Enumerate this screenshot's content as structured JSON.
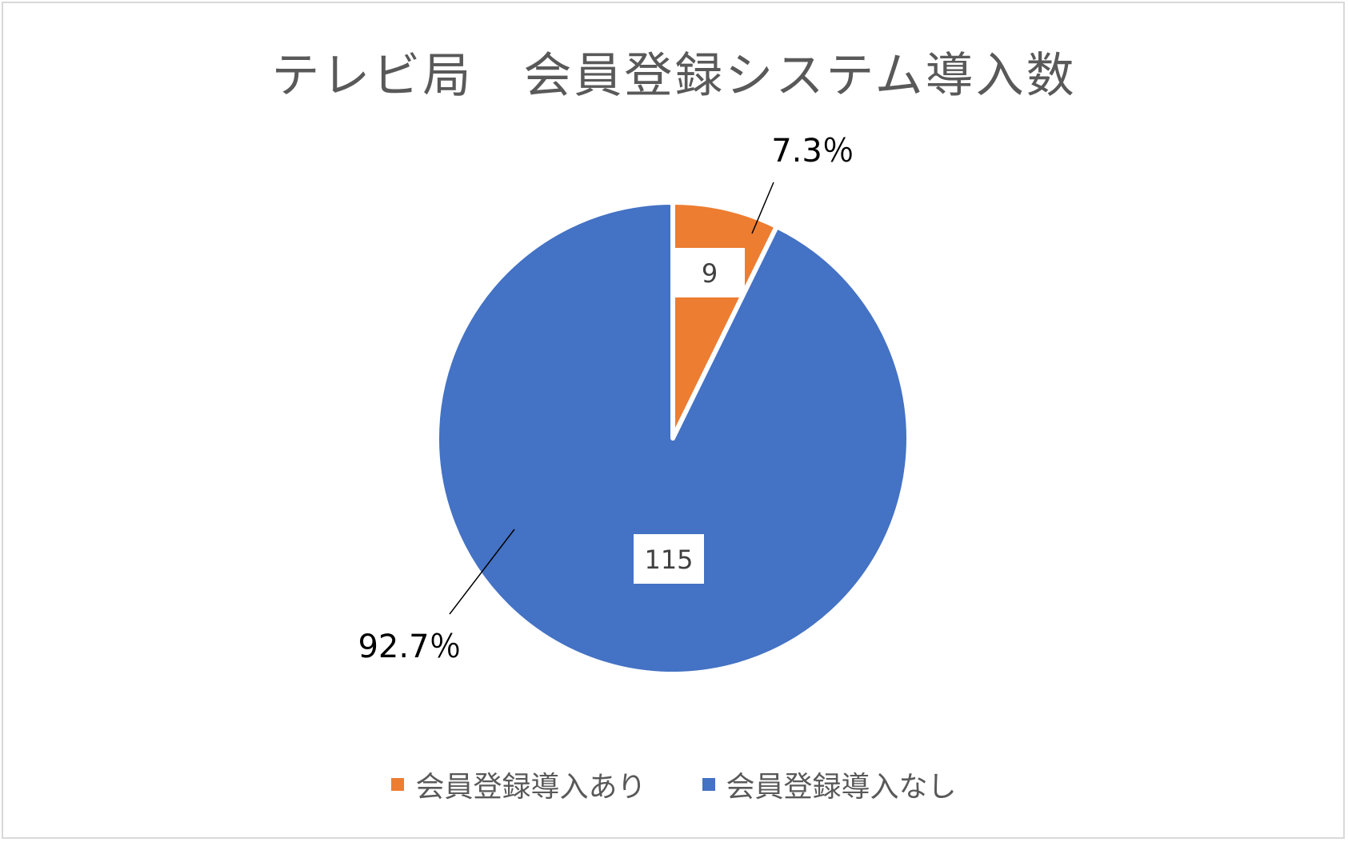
{
  "chart_data": {
    "type": "pie",
    "title": "テレビ局　会員登録システム導入数",
    "categories": [
      "会員登録導入あり",
      "会員登録導入なし"
    ],
    "values": [
      9,
      115
    ],
    "percent_labels": [
      "7.3％",
      "92.7％"
    ],
    "colors": [
      "#ED7D31",
      "#4472C4"
    ],
    "legend_position": "bottom",
    "start_angle_deg": 0,
    "direction": "clockwise"
  }
}
